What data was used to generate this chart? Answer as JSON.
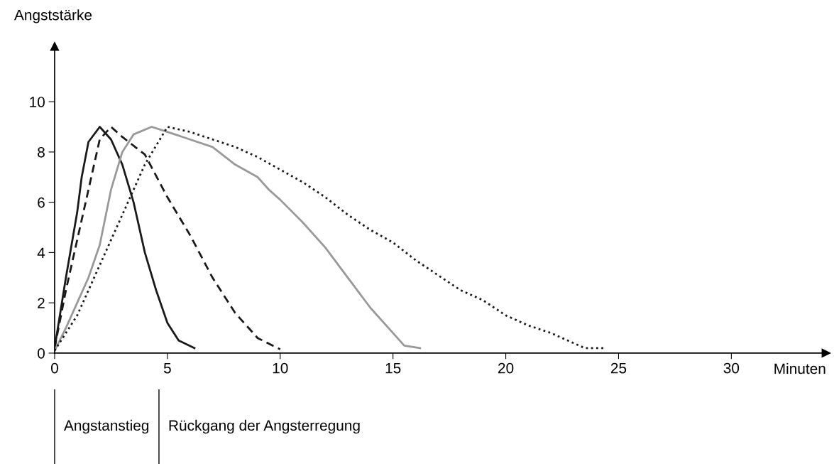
{
  "chart_data": {
    "type": "line",
    "xlabel": "Minuten",
    "ylabel": "Angststärke",
    "xlim": [
      0,
      34.2
    ],
    "ylim": [
      0,
      12.2
    ],
    "xticks": [
      0,
      5,
      10,
      15,
      20,
      25,
      30
    ],
    "yticks": [
      0,
      2,
      4,
      6,
      8,
      10
    ],
    "grid": false,
    "legend": false,
    "series": [
      {
        "color": "#1a1a1a",
        "line_style": "solid",
        "x": [
          0,
          0.5,
          1,
          1.2,
          1.5,
          2,
          2.5,
          3,
          3.5,
          4,
          4.5,
          5,
          5.5,
          6.2
        ],
        "values": [
          0.2,
          3,
          5.6,
          7,
          8.4,
          9,
          8.5,
          7.5,
          6,
          4,
          2.5,
          1.2,
          0.5,
          0.2
        ]
      },
      {
        "color": "#1a1a1a",
        "line_style": "dashed",
        "x": [
          0,
          0.5,
          1,
          1.5,
          2,
          2.5,
          3,
          4,
          5,
          6,
          7,
          8,
          9,
          10
        ],
        "values": [
          0.2,
          2.5,
          4.5,
          6.5,
          8.5,
          9,
          8.6,
          7.9,
          6.2,
          4.7,
          3,
          1.6,
          0.6,
          0.15
        ]
      },
      {
        "color": "#999999",
        "line_style": "solid",
        "x": [
          0,
          0.5,
          1,
          1.5,
          2,
          2.5,
          3,
          3.5,
          4.3,
          5,
          6,
          7,
          8,
          9,
          9.5,
          10,
          11,
          12,
          13,
          14,
          15,
          15.5,
          16.2
        ],
        "values": [
          0.1,
          1,
          2,
          3,
          4.3,
          6.5,
          8,
          8.7,
          9,
          8.8,
          8.5,
          8.2,
          7.5,
          7,
          6.5,
          6.1,
          5.2,
          4.2,
          3,
          1.8,
          0.8,
          0.3,
          0.2
        ]
      },
      {
        "color": "#1a1a1a",
        "line_style": "dotted",
        "x": [
          0,
          1,
          2,
          3,
          4,
          5,
          6,
          7,
          8,
          9,
          10,
          11,
          12,
          13,
          14,
          15,
          16,
          17,
          18,
          19,
          20,
          21,
          22,
          23,
          23.5,
          24.4
        ],
        "values": [
          0.1,
          1.5,
          3.5,
          5.5,
          7.5,
          9,
          8.8,
          8.5,
          8.2,
          7.8,
          7.3,
          6.8,
          6.2,
          5.5,
          4.9,
          4.4,
          3.7,
          3.1,
          2.5,
          2.1,
          1.5,
          1.1,
          0.8,
          0.4,
          0.2,
          0.2
        ]
      }
    ],
    "annotations": [
      "Angstanstieg",
      "Rückgang der Angsterregung"
    ]
  }
}
